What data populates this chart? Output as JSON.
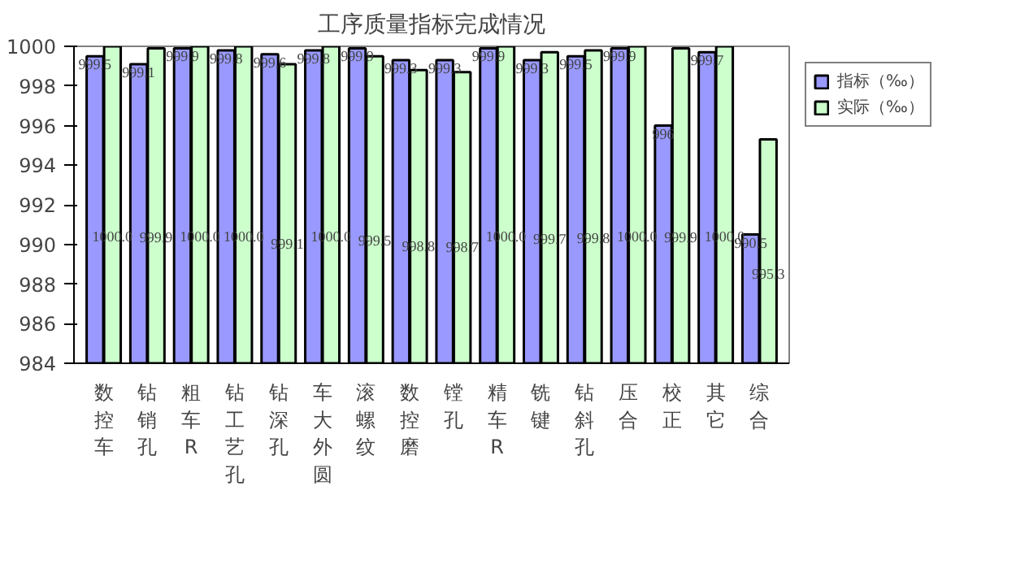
{
  "chart_data": {
    "type": "bar",
    "title": "工序质量指标完成情况",
    "categories": [
      "数控车",
      "钻销孔",
      "粗车R",
      "钻工艺孔",
      "钻深孔",
      "车大外圆",
      "滚螺纹",
      "数控磨",
      "镗孔",
      "精车R",
      "铣键",
      "钻斜孔",
      "压合",
      "校正",
      "其它",
      "综合"
    ],
    "series": [
      {
        "name": "指标（‰）",
        "color": "#9999ff",
        "values": [
          999.5,
          999.1,
          999.9,
          999.8,
          999.6,
          999.8,
          999.9,
          999.3,
          999.3,
          999.9,
          999.3,
          999.5,
          999.9,
          996,
          999.7,
          990.5
        ],
        "value_labels": [
          "999.5",
          "999.1",
          "999.9",
          "999.8",
          "999.6",
          "999.8",
          "999.9",
          "999.3",
          "999.3",
          "999.9",
          "999.3",
          "999.5",
          "999.9",
          "996",
          "999.7",
          "990.5"
        ]
      },
      {
        "name": "实际（‰）",
        "color": "#ccffcc",
        "values": [
          1000.0,
          999.9,
          1000.0,
          1000.0,
          999.1,
          1000.0,
          999.5,
          998.8,
          998.7,
          1000.0,
          999.7,
          999.8,
          1000.0,
          999.9,
          1000.0,
          995.3
        ],
        "value_labels": [
          "1000.0",
          "999.9",
          "1000.0",
          "1000.0",
          "999.1",
          "1000.0",
          "999.5",
          "998.8",
          "998.7",
          "1000.0",
          "999.7",
          "999.8",
          "1000.0",
          "999.9",
          "1000.0",
          "995.3"
        ]
      }
    ],
    "ylim": [
      984,
      1000
    ],
    "yticks": [
      984,
      986,
      988,
      990,
      992,
      994,
      996,
      998,
      1000
    ],
    "grid": false,
    "legend": "top right"
  }
}
